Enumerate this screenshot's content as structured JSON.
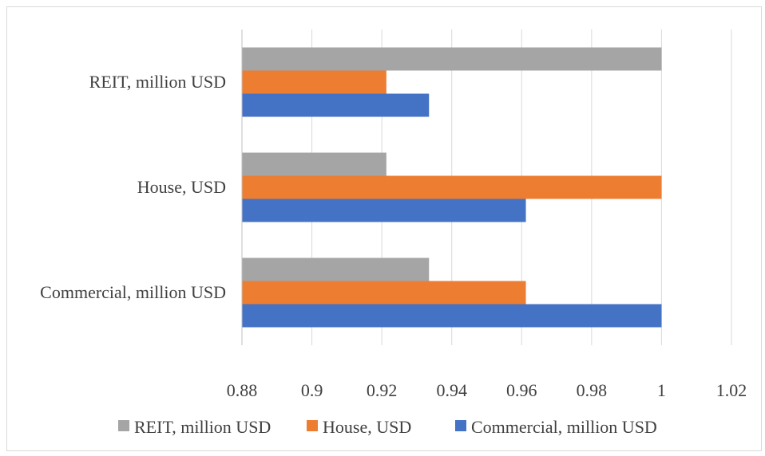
{
  "chart_data": {
    "type": "bar",
    "orientation": "horizontal",
    "categories": [
      "REIT, million USD",
      "House, USD",
      "Commercial, million USD"
    ],
    "series": [
      {
        "name": "REIT, million USD",
        "color": "#a5a5a5",
        "values": [
          1.0,
          0.9213,
          0.9335
        ]
      },
      {
        "name": "House, USD",
        "color": "#ed7d31",
        "values": [
          0.9213,
          1.0,
          0.9612
        ]
      },
      {
        "name": "Commercial, million USD",
        "color": "#4472c4",
        "values": [
          0.9335,
          0.9612,
          1.0
        ]
      }
    ],
    "xlim": [
      0.88,
      1.02
    ],
    "xticks": [
      "0.88",
      "0.9",
      "0.92",
      "0.94",
      "0.96",
      "0.98",
      "1",
      "1.02"
    ],
    "xtick_values": [
      0.88,
      0.9,
      0.92,
      0.94,
      0.96,
      0.98,
      1.0,
      1.02
    ],
    "grid": "vertical",
    "legend_position": "bottom",
    "title": "",
    "xlabel": "",
    "ylabel": ""
  }
}
